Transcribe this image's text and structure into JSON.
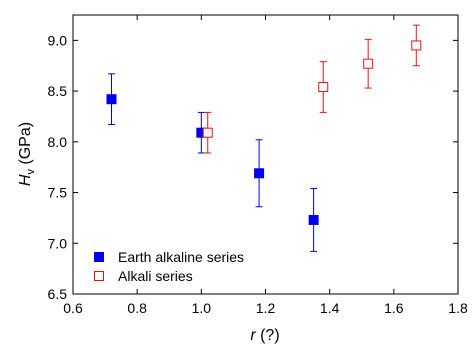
{
  "chart_data": {
    "type": "scatter",
    "xlabel_main": "r",
    "xlabel_unit": " (?)",
    "ylabel_main": "H",
    "ylabel_sub": "v",
    "ylabel_unit": " (GPa)",
    "xlim": [
      0.6,
      1.8
    ],
    "ylim": [
      6.5,
      9.25
    ],
    "xticks": [
      0.6,
      0.8,
      1.0,
      1.2,
      1.4,
      1.6,
      1.8
    ],
    "xtick_labels": [
      "0.6",
      "0.8",
      "1.0",
      "1.2",
      "1.4",
      "1.6",
      "1.8"
    ],
    "yticks": [
      6.5,
      7.0,
      7.5,
      8.0,
      8.5,
      9.0
    ],
    "ytick_labels": [
      "6.5",
      "7.0",
      "7.5",
      "8.0",
      "8.5",
      "9.0"
    ],
    "grid": false,
    "legend_position": "bottom-left",
    "series": [
      {
        "name": "Earth alkaline series",
        "marker": "filled-square",
        "color": "#0000ee",
        "x": [
          0.72,
          1.0,
          1.18,
          1.35
        ],
        "y": [
          8.42,
          8.09,
          7.69,
          7.23
        ],
        "yerr": [
          0.25,
          0.2,
          0.33,
          0.31
        ]
      },
      {
        "name": "Alkali series",
        "marker": "open-square",
        "color": "#ee1111",
        "x": [
          1.02,
          1.38,
          1.52,
          1.67
        ],
        "y": [
          8.09,
          8.54,
          8.77,
          8.95
        ],
        "yerr": [
          0.2,
          0.25,
          0.24,
          0.2
        ]
      }
    ]
  }
}
